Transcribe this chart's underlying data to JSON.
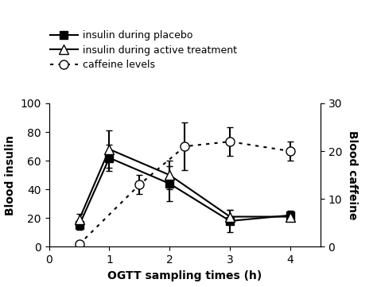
{
  "x_insulin": [
    0.5,
    1.0,
    2.0,
    3.0,
    4.0
  ],
  "insulin_placebo": [
    15,
    62,
    44,
    18,
    22
  ],
  "insulin_placebo_err": [
    3,
    9,
    12,
    8,
    3
  ],
  "insulin_active": [
    19,
    68,
    50,
    21,
    21
  ],
  "insulin_active_err": [
    4,
    13,
    10,
    5,
    3
  ],
  "caffeine_x": [
    0.5,
    1.5,
    2.25,
    3.0,
    4.0
  ],
  "caffeine_y": [
    0.5,
    13,
    21,
    22,
    20
  ],
  "caffeine_err": [
    0.3,
    2,
    5,
    3,
    2
  ],
  "xlabel": "OGTT sampling times (h)",
  "ylabel_left": "Blood insulin",
  "ylabel_right": "Blood caffeine",
  "legend1": "insulin during placebo",
  "legend2": "insulin during active treatment",
  "legend3": "caffeine levels",
  "ylim_left": [
    0,
    100
  ],
  "ylim_right": [
    0,
    30
  ],
  "xlim": [
    0,
    4.5
  ],
  "xticks": [
    0,
    1,
    2,
    3,
    4
  ],
  "xticklabels": [
    "0",
    "1",
    "2",
    "3",
    "4"
  ],
  "yticks_left": [
    0,
    20,
    40,
    60,
    80,
    100
  ],
  "yticks_right": [
    0,
    10,
    20,
    30
  ],
  "background": "#ffffff"
}
